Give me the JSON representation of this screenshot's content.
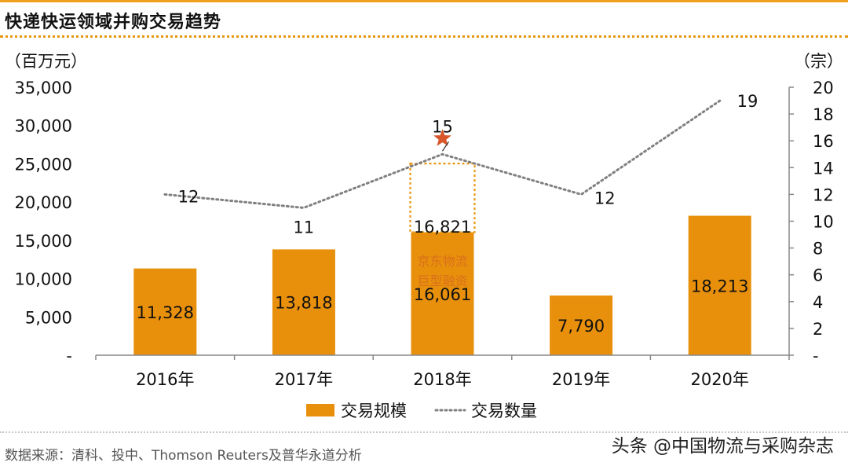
{
  "title": "快递快运领域并购交易趋势",
  "source": "数据来源：清科、投中、Thomson Reuters及普华永道分析",
  "watermark": "头条 @中国物流与采购杂志",
  "colors": {
    "bar": "#e8900c",
    "line": "#808080",
    "accent": "#e8960e",
    "highlight_text": "#d9701a",
    "star": "#d8562a"
  },
  "chart_data": {
    "type": "bar+line",
    "categories": [
      "2016年",
      "2017年",
      "2018年",
      "2019年",
      "2020年"
    ],
    "series": [
      {
        "name": "交易规模",
        "type": "bar",
        "axis": "left",
        "values": [
          11328,
          13818,
          16061,
          7790,
          18213
        ],
        "labels": [
          "11,328",
          "13,818",
          "16,061",
          "7,790",
          "18,213"
        ]
      },
      {
        "name": "交易数量",
        "type": "line",
        "axis": "right",
        "values": [
          12,
          11,
          15,
          12,
          19
        ],
        "labels": [
          "12",
          "11",
          "15",
          "12",
          "19"
        ]
      }
    ],
    "highlight": {
      "category": "2018年",
      "value": 16821,
      "value_label": "16,821",
      "text_lines": [
        "京东物流",
        "巨型融资"
      ],
      "marker": "star"
    },
    "left_axis": {
      "unit": "（百万元）",
      "ylim": [
        0,
        35000
      ],
      "ticks": [
        0,
        5000,
        10000,
        15000,
        20000,
        25000,
        30000,
        35000
      ],
      "tick_labels": [
        "-",
        "5,000",
        "10,000",
        "15,000",
        "20,000",
        "25,000",
        "30,000",
        "35,000"
      ]
    },
    "right_axis": {
      "unit": "（宗）",
      "ylim": [
        0,
        20
      ],
      "ticks": [
        0,
        2,
        4,
        6,
        8,
        10,
        12,
        14,
        16,
        18,
        20
      ],
      "tick_labels": [
        "-",
        "2",
        "4",
        "6",
        "8",
        "10",
        "12",
        "14",
        "16",
        "18",
        "20"
      ]
    },
    "legend": {
      "position": "bottom",
      "entries": [
        "交易规模",
        "交易数量"
      ]
    },
    "grid": false
  }
}
